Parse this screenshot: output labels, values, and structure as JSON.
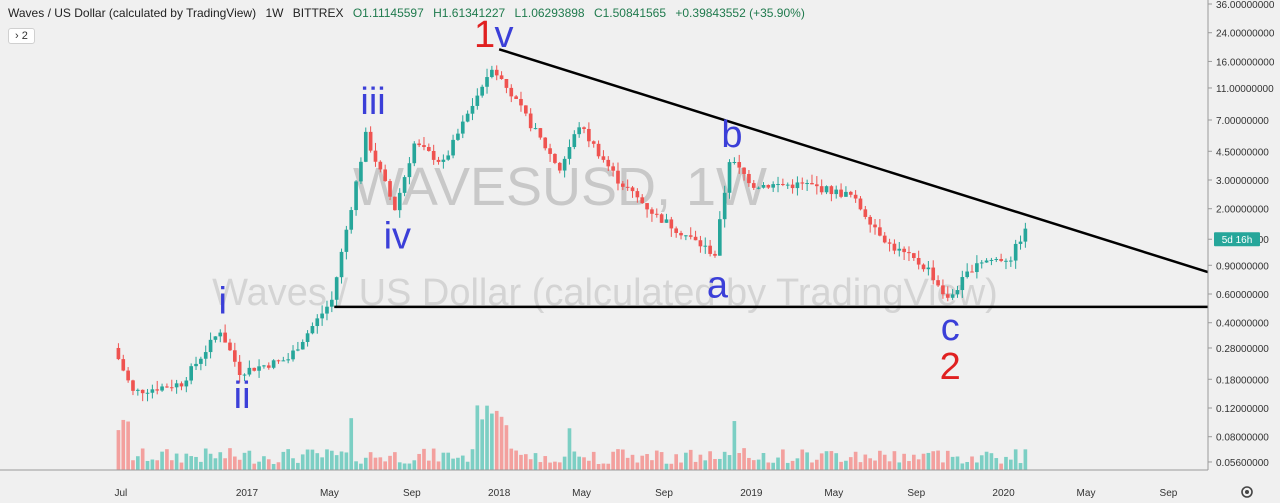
{
  "header": {
    "title": "Waves / US Dollar (calculated by TradingView)",
    "interval": "1W",
    "exchange": "BITTREX",
    "open": "O1.11145597",
    "high": "H1.61341227",
    "low": "L1.06293898",
    "close": "C1.50841565",
    "change": "+0.39843552 (+35.90%)",
    "indicator_button": "› 2"
  },
  "watermark": {
    "symbol": "WAVESUSD, 1W",
    "description": "Waves / US Dollar (calculated by TradingView)"
  },
  "price_badge": "5d 16h",
  "settings_icon": "gear-icon",
  "colors": {
    "background": "#f0f0f0",
    "up": "#26a69a",
    "down": "#ef5350",
    "volume_up": "#7ccfc4",
    "volume_down": "#f3a09e",
    "line": "#000000",
    "label_blue": "#3b3fd8",
    "label_red": "#e02020"
  },
  "chart_data": {
    "type": "candlestick",
    "title": "Waves / US Dollar (calculated by TradingView)",
    "y_scale": "log",
    "ylim": [
      0.05,
      36
    ],
    "y_ticks": [
      "36.00000000",
      "24.00000000",
      "16.00000000",
      "11.00000000",
      "7.00000000",
      "4.50000000",
      "3.00000000",
      "2.00000000",
      "1.30000000",
      "0.90000000",
      "0.60000000",
      "0.40000000",
      "0.28000000",
      "0.18000000",
      "0.12000000",
      "0.08000000",
      "0.05600000"
    ],
    "x_ticks": [
      "Jul",
      "2017",
      "May",
      "Sep",
      "2018",
      "May",
      "Sep",
      "2019",
      "May",
      "Sep",
      "2020",
      "May",
      "Sep"
    ],
    "candle_count": 188,
    "price_path": [
      {
        "week": 0,
        "price": 0.28
      },
      {
        "week": 4,
        "price": 0.15
      },
      {
        "week": 14,
        "price": 0.17
      },
      {
        "week": 22,
        "price": 0.36
      },
      {
        "week": 26,
        "price": 0.2
      },
      {
        "week": 36,
        "price": 0.24
      },
      {
        "week": 45,
        "price": 0.55
      },
      {
        "week": 52,
        "price": 5.6
      },
      {
        "week": 58,
        "price": 2.0
      },
      {
        "week": 62,
        "price": 5.0
      },
      {
        "week": 68,
        "price": 3.8
      },
      {
        "week": 78,
        "price": 15.0
      },
      {
        "week": 82,
        "price": 10.0
      },
      {
        "week": 92,
        "price": 3.5
      },
      {
        "week": 96,
        "price": 6.5
      },
      {
        "week": 104,
        "price": 3.0
      },
      {
        "week": 112,
        "price": 1.8
      },
      {
        "week": 124,
        "price": 1.05
      },
      {
        "week": 127,
        "price": 4.0
      },
      {
        "week": 132,
        "price": 2.8
      },
      {
        "week": 143,
        "price": 2.8
      },
      {
        "week": 152,
        "price": 2.4
      },
      {
        "week": 160,
        "price": 1.2
      },
      {
        "week": 168,
        "price": 0.85
      },
      {
        "week": 172,
        "price": 0.55
      },
      {
        "week": 178,
        "price": 0.95
      },
      {
        "week": 185,
        "price": 1.0
      },
      {
        "week": 188,
        "price": 1.51
      }
    ],
    "trendlines": [
      {
        "name": "upper",
        "from": {
          "week": 79,
          "price": 19.0
        },
        "to": {
          "week": 248,
          "price": 0.5
        }
      },
      {
        "name": "support",
        "from": {
          "week": 45,
          "price": 0.5
        },
        "to": {
          "week": 248,
          "price": 0.5
        }
      }
    ],
    "wave_labels": [
      {
        "text": "i",
        "week": 22,
        "price": 0.42,
        "color": "blue",
        "pos": "above"
      },
      {
        "text": "ii",
        "week": 26,
        "price": 0.2,
        "color": "blue",
        "pos": "below"
      },
      {
        "text": "iii",
        "week": 53,
        "price": 7.0,
        "color": "blue",
        "pos": "above"
      },
      {
        "text": "iv",
        "week": 58,
        "price": 1.9,
        "color": "blue",
        "pos": "below"
      },
      {
        "text": "v",
        "week": 80,
        "price": 18.0,
        "color": "blue",
        "pos": "above"
      },
      {
        "text": "1",
        "week": 76,
        "price": 18.0,
        "color": "red",
        "pos": "above"
      },
      {
        "text": "a",
        "week": 124,
        "price": 0.95,
        "color": "blue",
        "pos": "below"
      },
      {
        "text": "b",
        "week": 127,
        "price": 4.4,
        "color": "blue",
        "pos": "above"
      },
      {
        "text": "c",
        "week": 172,
        "price": 0.52,
        "color": "blue",
        "pos": "below"
      },
      {
        "text": "2",
        "week": 172,
        "price": 0.3,
        "color": "red",
        "pos": "below"
      }
    ],
    "grid": false,
    "volume": true
  }
}
